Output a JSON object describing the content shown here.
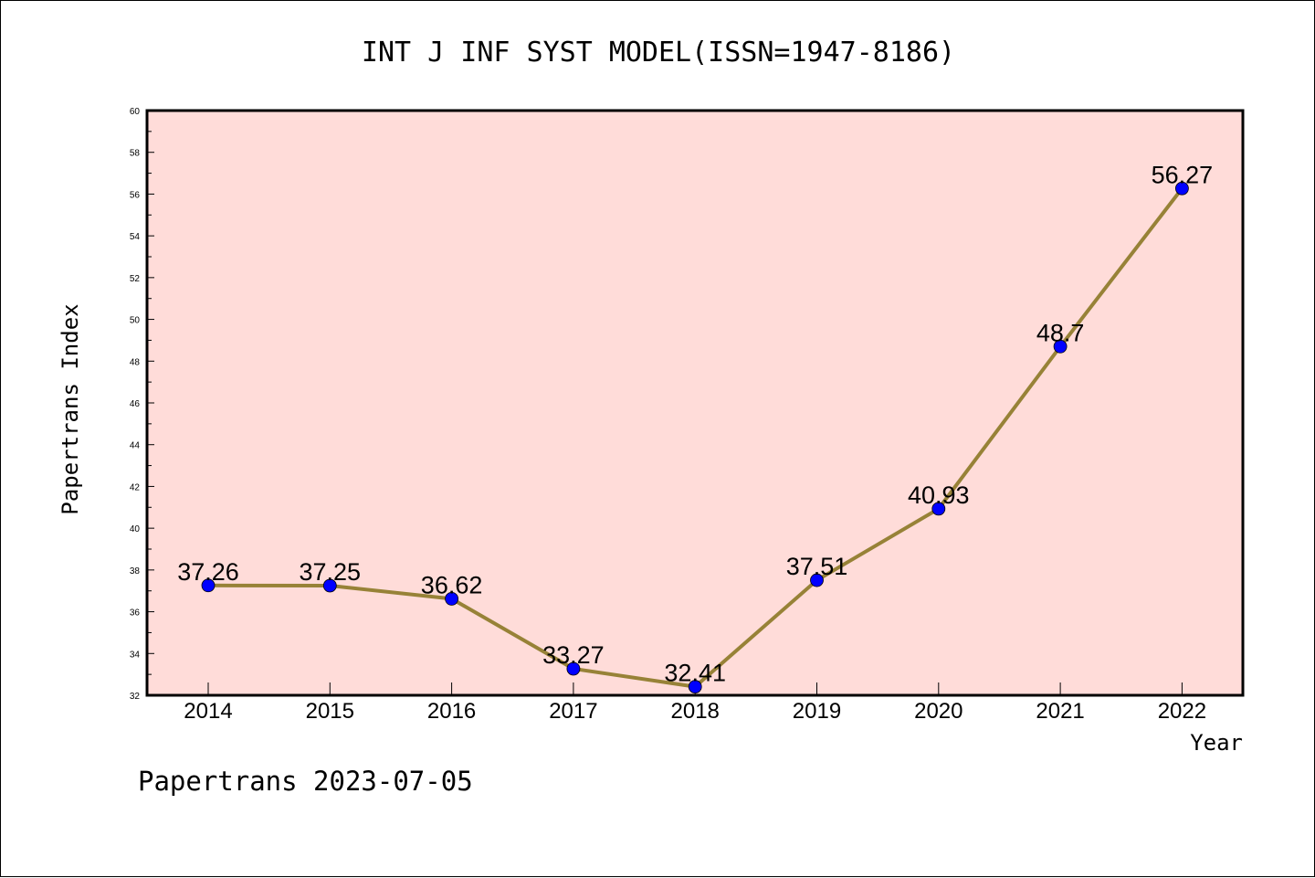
{
  "chart_data": {
    "type": "line",
    "title": "INT J INF SYST MODEL(ISSN=1947-8186)",
    "xlabel": "Year",
    "ylabel": "Papertrans Index",
    "categories": [
      "2014",
      "2015",
      "2016",
      "2017",
      "2018",
      "2019",
      "2020",
      "2021",
      "2022"
    ],
    "series": [
      {
        "values": [
          37.26,
          37.25,
          36.62,
          33.27,
          32.41,
          37.51,
          40.93,
          48.7,
          56.27
        ],
        "labels": [
          "37.26",
          "37.25",
          "36.62",
          "33.27",
          "32.41",
          "37.51",
          "40.93",
          "48.7",
          "56.27"
        ],
        "line_color": "#978237",
        "marker_color": "#0000ff"
      }
    ],
    "ylim": [
      32,
      60
    ],
    "yticks": [
      "32",
      "34",
      "36",
      "38",
      "40",
      "42",
      "44",
      "46",
      "48",
      "50",
      "52",
      "54",
      "56",
      "58",
      "60"
    ],
    "plot_background": "#ffdcd9",
    "grid": false,
    "footer": "Papertrans 2023-07-05"
  }
}
